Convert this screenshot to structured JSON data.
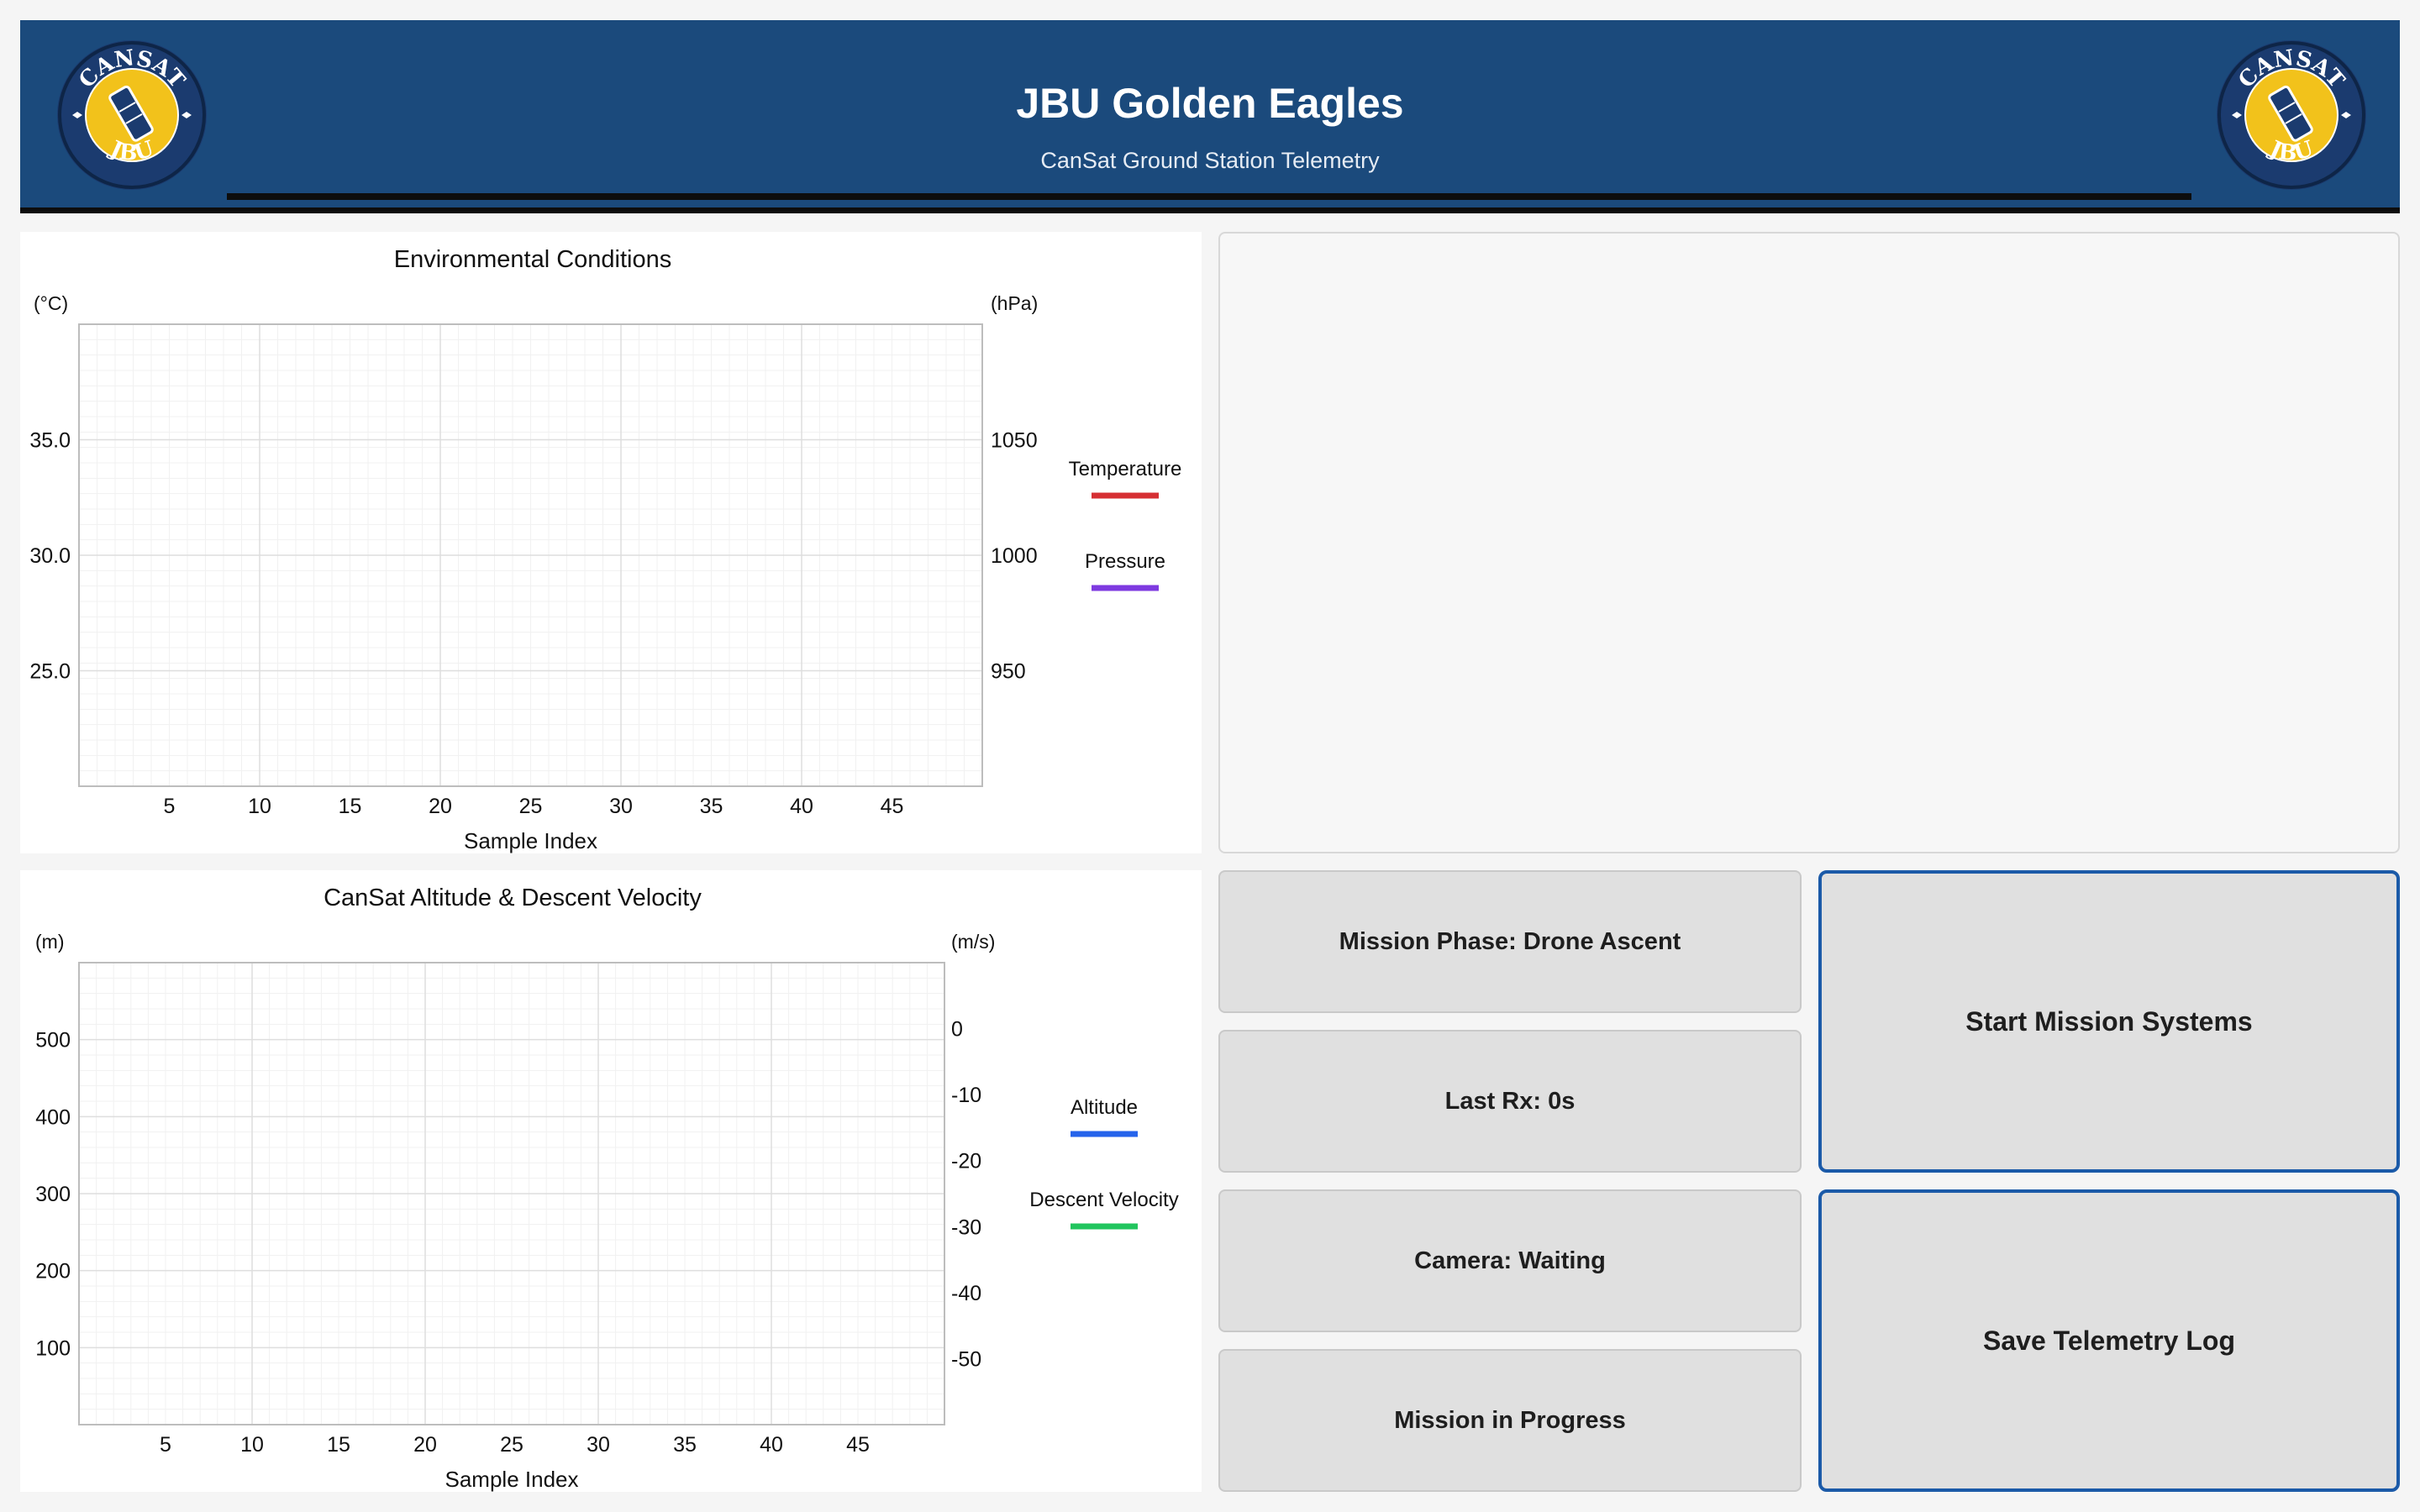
{
  "header": {
    "title": "JBU Golden Eagles",
    "subtitle": "CanSat Ground Station Telemetry",
    "logo": {
      "top_text": "CANSAT",
      "bottom_text": "JBU",
      "icon": "cansat-logo-icon",
      "colors": {
        "ring": "#1b3b6f",
        "inner": "#f2c21b",
        "outline": "#ffffff"
      }
    }
  },
  "colors": {
    "header_bg": "#1b4a7c",
    "temperature": "#d62f33",
    "pressure": "#7e3ae0",
    "altitude": "#2563eb",
    "velocity": "#22c55e",
    "button_border": "#1b5aa8"
  },
  "chart_data": [
    {
      "type": "line",
      "title": "Environmental Conditions",
      "xlabel": "Sample Index",
      "x_ticks": [
        5,
        10,
        15,
        20,
        25,
        30,
        35,
        40,
        45
      ],
      "xlim": [
        0,
        50
      ],
      "y_left": {
        "unit": "(°C)",
        "ticks": [
          "35.0",
          "30.0",
          "25.0"
        ],
        "tick_values": [
          35,
          30,
          25
        ],
        "ylim": [
          20,
          40
        ]
      },
      "y_right": {
        "unit": "(hPa)",
        "ticks": [
          "1050",
          "1000",
          "950"
        ],
        "tick_values": [
          1050,
          1000,
          950
        ],
        "ylim": [
          900,
          1100
        ]
      },
      "grid": true,
      "legend": "right",
      "series": [
        {
          "name": "Temperature",
          "axis": "left",
          "color": "#d62f33",
          "values": []
        },
        {
          "name": "Pressure",
          "axis": "right",
          "color": "#7e3ae0",
          "values": []
        }
      ]
    },
    {
      "type": "line",
      "title": "CanSat Altitude & Descent Velocity",
      "xlabel": "Sample Index",
      "x_ticks": [
        5,
        10,
        15,
        20,
        25,
        30,
        35,
        40,
        45
      ],
      "xlim": [
        0,
        50
      ],
      "y_left": {
        "unit": "(m)",
        "ticks": [
          "500",
          "400",
          "300",
          "200",
          "100"
        ],
        "tick_values": [
          500,
          400,
          300,
          200,
          100
        ],
        "ylim": [
          0,
          600
        ]
      },
      "y_right": {
        "unit": "(m/s)",
        "ticks": [
          "0",
          "-10",
          "-20",
          "-30",
          "-40",
          "-50"
        ],
        "tick_values": [
          0,
          -10,
          -20,
          -30,
          -40,
          -50
        ],
        "ylim": [
          -60,
          10
        ]
      },
      "grid": true,
      "legend": "right",
      "series": [
        {
          "name": "Altitude",
          "axis": "left",
          "color": "#2563eb",
          "values": []
        },
        {
          "name": "Descent Velocity",
          "axis": "right",
          "color": "#22c55e",
          "values": []
        }
      ]
    }
  ],
  "status": {
    "phase": "Mission Phase: Drone Ascent",
    "last_rx": "Last Rx: 0s",
    "camera": "Camera: Waiting",
    "mission": "Mission in Progress"
  },
  "buttons": {
    "start": "Start Mission Systems",
    "save": "Save Telemetry Log"
  }
}
